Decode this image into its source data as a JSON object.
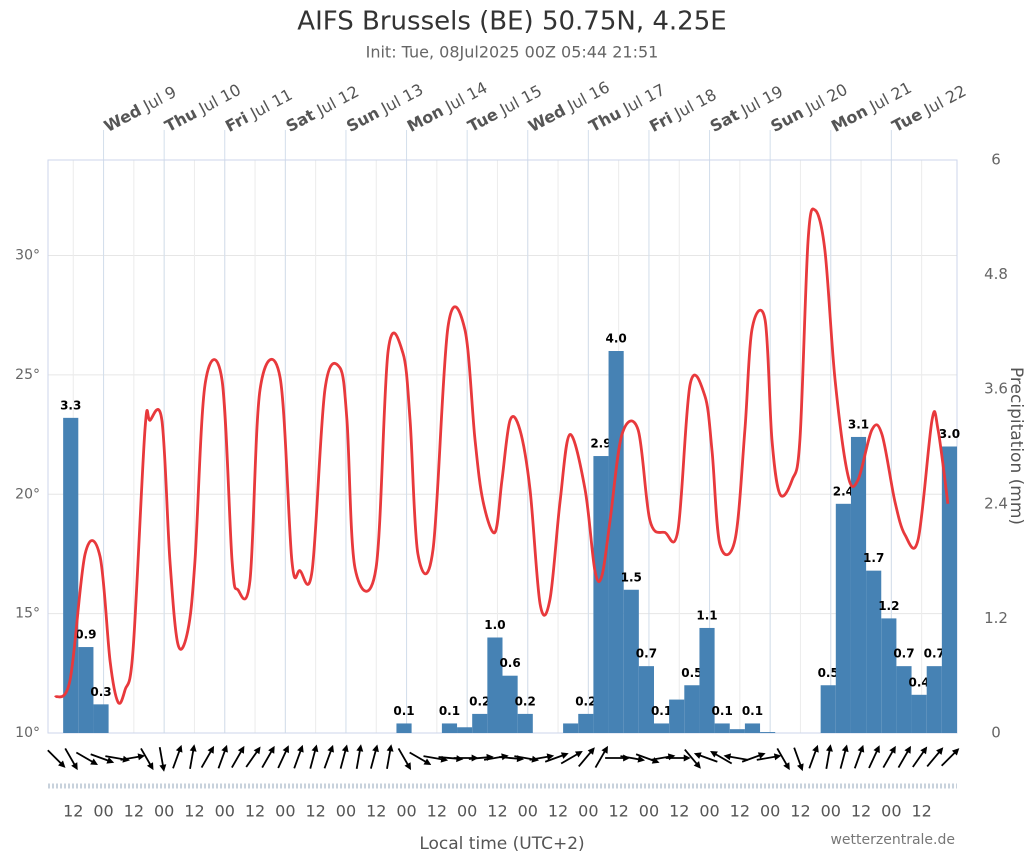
{
  "chart_data": {
    "type": "combo",
    "title": "AIFS Brussels (BE) 50.75N, 4.25E",
    "subtitle": "Init: Tue, 08Jul2025 00Z 05:44 21:51",
    "xlabel": "Local time (UTC+2)",
    "y2label": "Precipitation (mm)",
    "credit": "wetterzentrale.de",
    "xlim": [
      2,
      362
    ],
    "xticks": [
      {
        "value": 12,
        "label": "12"
      },
      {
        "value": 24,
        "label": "00"
      },
      {
        "value": 36,
        "label": "12"
      },
      {
        "value": 48,
        "label": "00"
      },
      {
        "value": 60,
        "label": "12"
      },
      {
        "value": 72,
        "label": "00"
      },
      {
        "value": 84,
        "label": "12"
      },
      {
        "value": 96,
        "label": "00"
      },
      {
        "value": 108,
        "label": "12"
      },
      {
        "value": 120,
        "label": "00"
      },
      {
        "value": 132,
        "label": "12"
      },
      {
        "value": 144,
        "label": "00"
      },
      {
        "value": 156,
        "label": "12"
      },
      {
        "value": 168,
        "label": "00"
      },
      {
        "value": 180,
        "label": "12"
      },
      {
        "value": 192,
        "label": "00"
      },
      {
        "value": 204,
        "label": "12"
      },
      {
        "value": 216,
        "label": "00"
      },
      {
        "value": 228,
        "label": "12"
      },
      {
        "value": 240,
        "label": "00"
      },
      {
        "value": 252,
        "label": "12"
      },
      {
        "value": 264,
        "label": "00"
      },
      {
        "value": 276,
        "label": "12"
      },
      {
        "value": 288,
        "label": "00"
      },
      {
        "value": 300,
        "label": "12"
      },
      {
        "value": 312,
        "label": "00"
      },
      {
        "value": 324,
        "label": "12"
      },
      {
        "value": 336,
        "label": "00"
      },
      {
        "value": 348,
        "label": "12"
      }
    ],
    "top_ticks": [
      {
        "value": 24,
        "day": "Wed",
        "date": "Jul 9"
      },
      {
        "value": 48,
        "day": "Thu",
        "date": "Jul 10"
      },
      {
        "value": 72,
        "day": "Fri",
        "date": "Jul 11"
      },
      {
        "value": 96,
        "day": "Sat",
        "date": "Jul 12"
      },
      {
        "value": 120,
        "day": "Sun",
        "date": "Jul 13"
      },
      {
        "value": 144,
        "day": "Mon",
        "date": "Jul 14"
      },
      {
        "value": 168,
        "day": "Tue",
        "date": "Jul 15"
      },
      {
        "value": 192,
        "day": "Wed",
        "date": "Jul 16"
      },
      {
        "value": 216,
        "day": "Thu",
        "date": "Jul 17"
      },
      {
        "value": 240,
        "day": "Fri",
        "date": "Jul 18"
      },
      {
        "value": 264,
        "day": "Sat",
        "date": "Jul 19"
      },
      {
        "value": 288,
        "day": "Sun",
        "date": "Jul 20"
      },
      {
        "value": 312,
        "day": "Mon",
        "date": "Jul 21"
      },
      {
        "value": 336,
        "day": "Tue",
        "date": "Jul 22"
      }
    ],
    "ylim": [
      10,
      34
    ],
    "yticks": [
      {
        "value": 10,
        "label": "10°"
      },
      {
        "value": 15,
        "label": "15°"
      },
      {
        "value": 20,
        "label": "20°"
      },
      {
        "value": 25,
        "label": "25°"
      },
      {
        "value": 30,
        "label": "30°"
      }
    ],
    "y2lim": [
      0,
      6
    ],
    "y2ticks": [
      0,
      1.2,
      2.4,
      3.6,
      4.8,
      6
    ],
    "grid": true,
    "series": [
      {
        "type": "line",
        "color": "#e8393c",
        "x": [
          4.8,
          10.7,
          16.7,
          22.6,
          26.6,
          29.7,
          32.5,
          35.7,
          40.4,
          42.4,
          47.1,
          50.3,
          53.5,
          57.4,
          60.2,
          64.2,
          70.9,
          74.9,
          77.2,
          82,
          86,
          93.9,
          98.6,
          101.8,
          106.6,
          111.7,
          117.6,
          120.4,
          123.6,
          131.9,
          136.7,
          142.6,
          145.4,
          148.5,
          154.5,
          160.4,
          167.1,
          171.1,
          174.3,
          179,
          181.8,
          185,
          188.9,
          192.9,
          196.9,
          200.8,
          204.8,
          208.7,
          214.7,
          218.6,
          221.4,
          224.6,
          229.3,
          235.7,
          240.4,
          246.3,
          251.5,
          256.3,
          262.2,
          265,
          268.1,
          274.1,
          278,
          280.8,
          286,
          288.7,
          291.9,
          296.7,
          299.8,
          303,
          305.8,
          309.7,
          313.7,
          318.8,
          322.8,
          328.3,
          332.3,
          337.4,
          341.4,
          346.6,
          352.1,
          354.5,
          358.4
        ],
        "values": [
          11.5,
          12.2,
          17.5,
          17.4,
          13,
          11.3,
          11.8,
          13.5,
          22.7,
          23.1,
          23.1,
          17.2,
          13.7,
          14.3,
          17.2,
          24.6,
          24.8,
          17.2,
          16,
          16.4,
          24.4,
          24.9,
          17.2,
          16.8,
          16.8,
          24.4,
          25.3,
          23.1,
          16.9,
          16.9,
          26,
          25.9,
          23.1,
          17.5,
          17.7,
          27,
          26.9,
          22.3,
          19.7,
          18.4,
          20.6,
          23.1,
          22.7,
          20.2,
          15.4,
          15.6,
          19.7,
          22.5,
          20.2,
          16.8,
          16.6,
          18.9,
          22.5,
          22.7,
          18.9,
          18.4,
          18.5,
          24.6,
          24.1,
          21.8,
          17.9,
          18.1,
          22.7,
          26.9,
          27.3,
          22.3,
          20,
          20.6,
          22.3,
          30.6,
          31.9,
          30.2,
          24.8,
          20.8,
          20.6,
          22.7,
          22.5,
          19.7,
          18.3,
          18.1,
          23.1,
          22.7,
          19.6
        ]
      },
      {
        "type": "bar",
        "axis": "y2",
        "color": "#4682b4",
        "x": [
          11,
          17,
          23,
          143,
          161,
          167,
          173,
          179,
          185,
          191,
          209,
          215,
          221,
          227,
          233,
          239,
          245,
          251,
          257,
          263,
          269,
          275,
          281,
          287,
          311,
          317,
          323,
          329,
          335,
          341,
          347,
          353,
          359
        ],
        "values": [
          3.3,
          0.9,
          0.3,
          0.1,
          0.1,
          0.06,
          0.2,
          1.0,
          0.6,
          0.2,
          0.1,
          0.2,
          2.9,
          4.0,
          1.5,
          0.7,
          0.1,
          0.35,
          0.5,
          1.1,
          0.1,
          0.04,
          0.1,
          0.01,
          0.5,
          2.4,
          3.1,
          1.7,
          1.2,
          0.7,
          0.4,
          0.7,
          3.0
        ],
        "value_labels": [
          "3.3",
          "0.9",
          "0.3",
          "0.1",
          "0.1",
          null,
          "0.2",
          "1.0",
          "0.6",
          "0.2",
          null,
          "0.2",
          "2.9",
          "4.0",
          "1.5",
          "0.7",
          "0.1",
          null,
          "0.5",
          "1.1",
          "0.1",
          null,
          "0.1",
          null,
          "0.5",
          "2.4",
          "3.1",
          "1.7",
          "1.2",
          "0.7",
          "0.4",
          "0.7",
          "3.0"
        ]
      }
    ],
    "wind": {
      "x": [
        5,
        11,
        17,
        23,
        29,
        35,
        41,
        47,
        53,
        59,
        65,
        71,
        77,
        83,
        89,
        95,
        101,
        107,
        113,
        119,
        125,
        131,
        137,
        143,
        149,
        155,
        161,
        167,
        173,
        179,
        185,
        191,
        197,
        203,
        209,
        215,
        221,
        227,
        233,
        239,
        245,
        251,
        257,
        263,
        269,
        275,
        281,
        287,
        293,
        299,
        305,
        311,
        317,
        323,
        329,
        335,
        341,
        347,
        353,
        359
      ],
      "direction": [
        135,
        150,
        120,
        110,
        100,
        80,
        150,
        170,
        20,
        10,
        30,
        20,
        30,
        35,
        30,
        25,
        20,
        15,
        20,
        15,
        10,
        15,
        10,
        150,
        120,
        100,
        95,
        90,
        85,
        80,
        95,
        100,
        80,
        70,
        60,
        40,
        30,
        90,
        100,
        110,
        80,
        90,
        140,
        290,
        300,
        280,
        70,
        80,
        150,
        160,
        20,
        10,
        15,
        20,
        25,
        30,
        30,
        35,
        40,
        45
      ]
    }
  }
}
